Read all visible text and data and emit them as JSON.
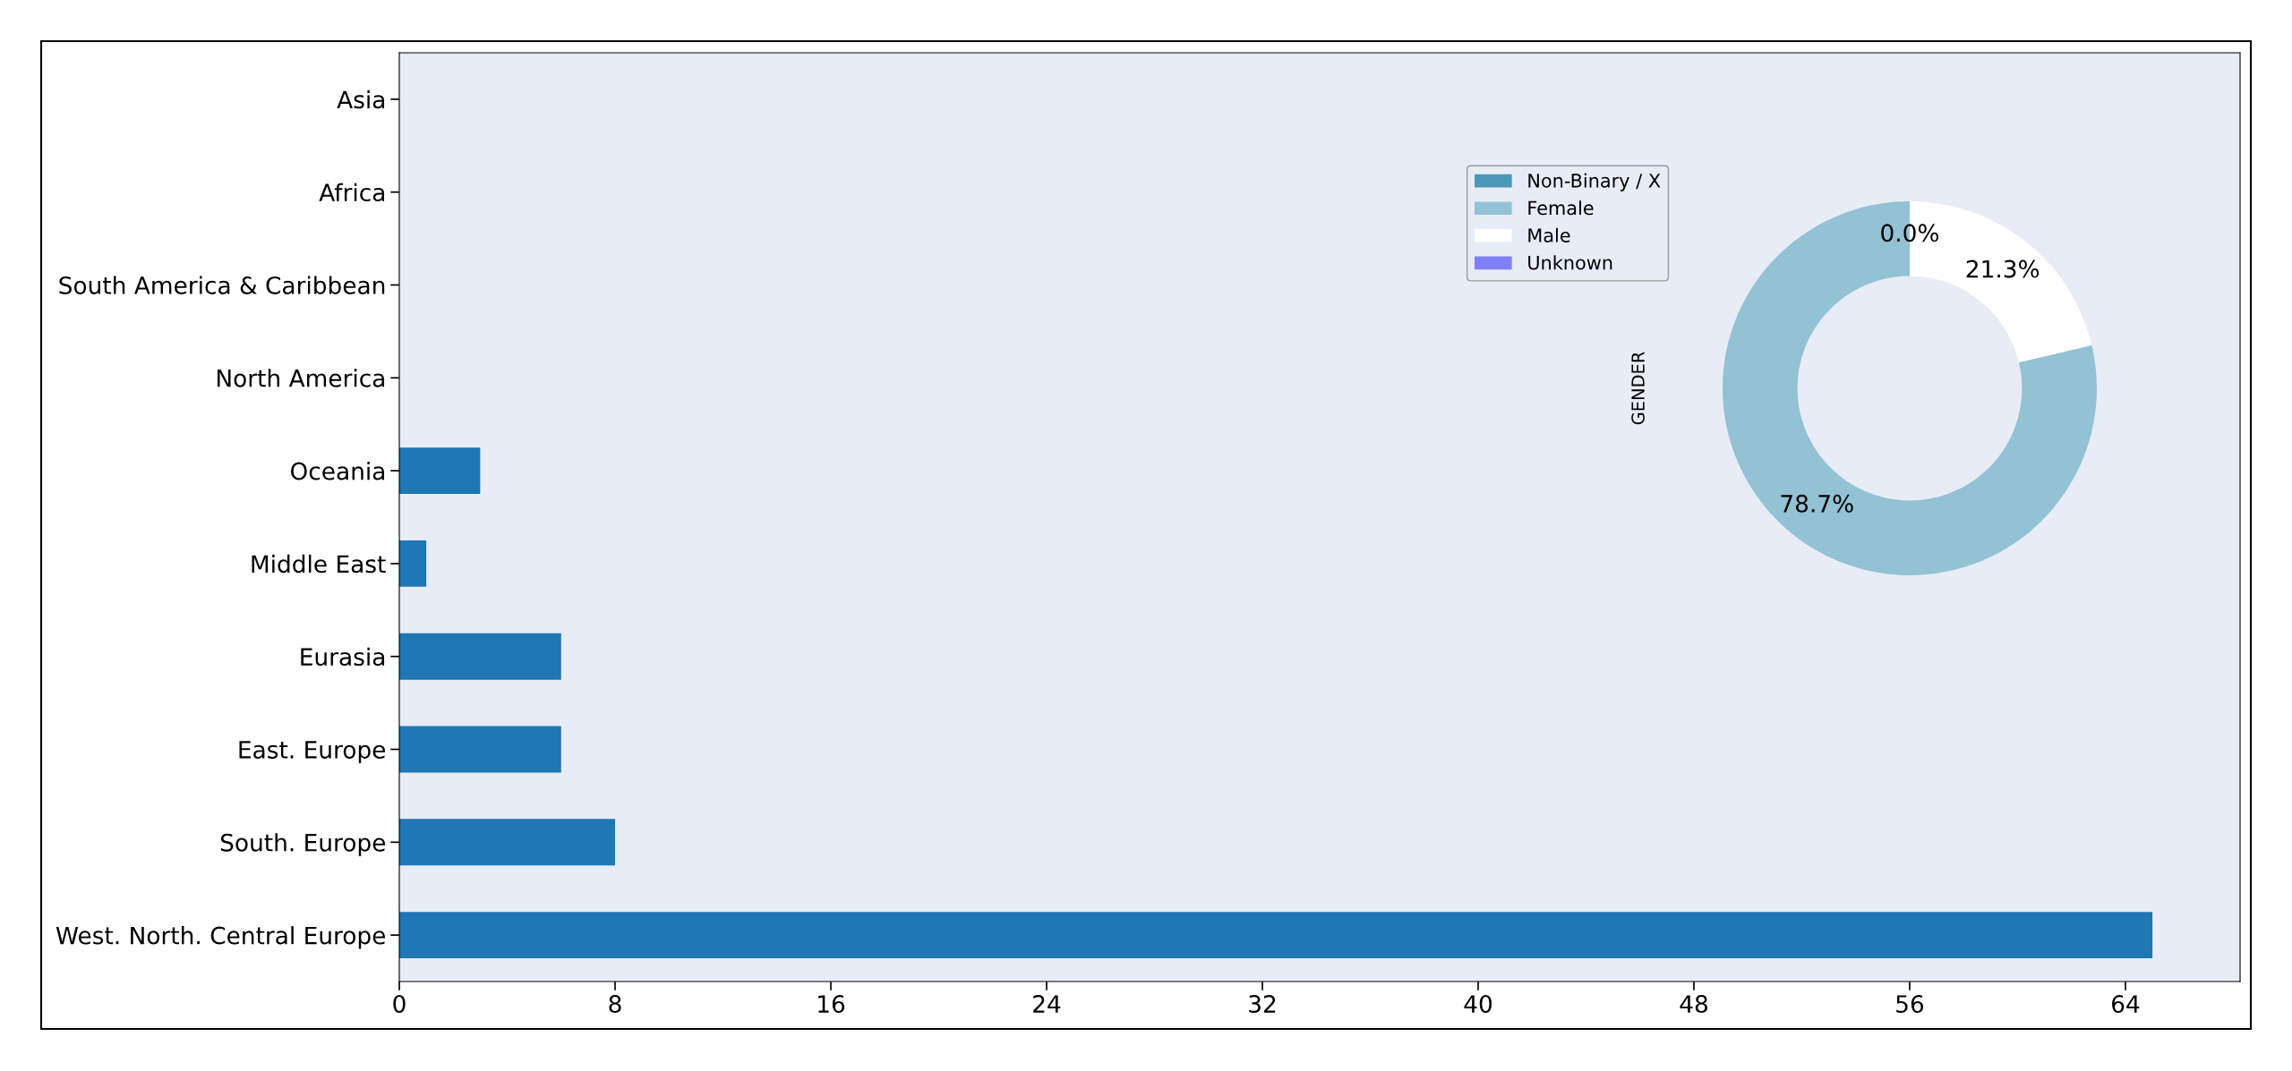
{
  "chart_data": [
    {
      "type": "bar",
      "orientation": "horizontal",
      "categories": [
        "Asia",
        "Africa",
        "South America & Caribbean",
        "North America",
        "Oceania",
        "Middle East",
        "Eurasia",
        "East. Europe",
        "South. Europe",
        "West. North. Central Europe"
      ],
      "values": [
        0,
        0,
        0,
        0,
        3,
        1,
        6,
        6,
        8,
        65
      ],
      "color": "#1f77b4",
      "xlim": [
        0,
        68.25
      ],
      "xticks": [
        0,
        8,
        16,
        24,
        32,
        40,
        48,
        56,
        64
      ],
      "grid": false
    },
    {
      "type": "donut",
      "ylabel": "GENDER",
      "categories": [
        "Non-Binary / X",
        "Female",
        "Male",
        "Unknown"
      ],
      "values": [
        0,
        78.7,
        21.3,
        0
      ],
      "colors": [
        "#4a98b5",
        "#92c2d4",
        "#ffffff",
        "#8080ff"
      ],
      "value_labels": [
        "0.0%",
        "78.7%",
        "21.3%",
        null
      ],
      "legend": "top left"
    }
  ]
}
